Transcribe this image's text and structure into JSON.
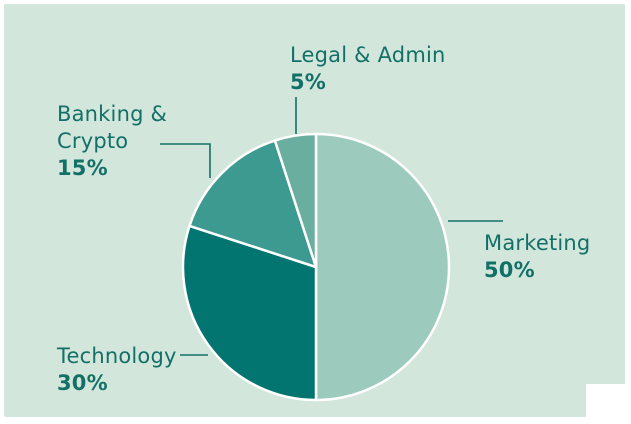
{
  "chart_data": {
    "type": "pie",
    "slices": [
      {
        "label_lines": [
          "Marketing"
        ],
        "value": 50,
        "value_label": "50%",
        "color": "#9ccabd"
      },
      {
        "label_lines": [
          "Technology"
        ],
        "value": 30,
        "value_label": "30%",
        "color": "#027570"
      },
      {
        "label_lines": [
          "Banking &",
          "Crypto"
        ],
        "value": 15,
        "value_label": "15%",
        "color": "#3d9a90"
      },
      {
        "label_lines": [
          "Legal & Admin"
        ],
        "value": 5,
        "value_label": "5%",
        "color": "#6aae9f"
      }
    ],
    "start": "top, clockwise",
    "label_color": "#127067",
    "background": "#d3e6dc"
  }
}
